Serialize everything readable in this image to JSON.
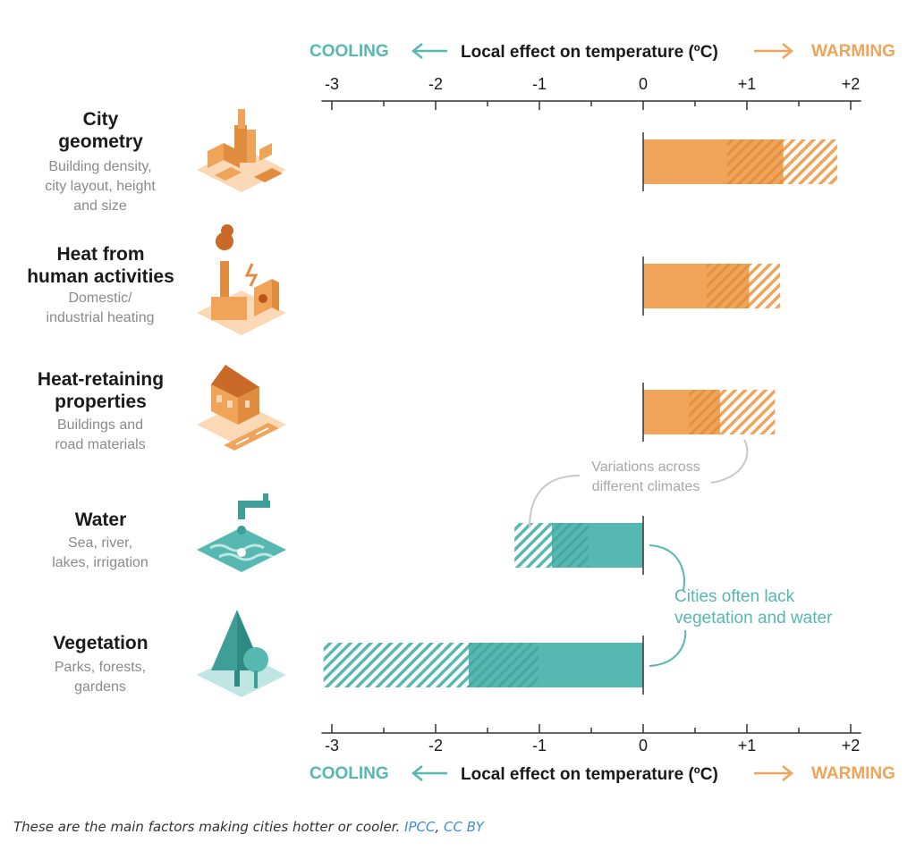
{
  "colors": {
    "cooling": "#56b8b1",
    "warming": "#f0a459",
    "cooling_dark": "#3f9f98",
    "warming_dark": "#e08d3f"
  },
  "axis": {
    "cooling_label": "COOLING",
    "title": "Local effect on temperature (ºC)",
    "warming_label": "WARMING",
    "top_ticks": [
      "-3",
      "-2",
      "-1",
      "0",
      "+1",
      "+2"
    ],
    "bottom_ticks": [
      "-3",
      "-2",
      "-1",
      "0",
      "+1",
      "+2"
    ]
  },
  "factors": [
    {
      "title": [
        "City",
        "geometry"
      ],
      "subtitle": [
        "Building density,",
        "city layout, height",
        "and size"
      ],
      "icon": "city-buildings-icon"
    },
    {
      "title": [
        "Heat from",
        "human activities"
      ],
      "subtitle": [
        "Domestic/",
        "industrial heating"
      ],
      "icon": "factory-chimney-icon"
    },
    {
      "title": [
        "Heat-retaining",
        "properties"
      ],
      "subtitle": [
        "Buildings and",
        "road materials"
      ],
      "icon": "house-road-icon"
    },
    {
      "title": [
        "Water"
      ],
      "subtitle": [
        "Sea, river,",
        "lakes, irrigation"
      ],
      "icon": "water-tap-icon"
    },
    {
      "title": [
        "Vegetation"
      ],
      "subtitle": [
        "Parks, forests,",
        "gardens"
      ],
      "icon": "tree-icon"
    }
  ],
  "annotations": {
    "variations": [
      "Variations across",
      "different climates"
    ],
    "cities_lack": [
      "Cities often lack",
      "vegetation and water"
    ]
  },
  "chart_data": {
    "type": "bar",
    "orientation": "horizontal",
    "xlim": [
      -3.1,
      2.1
    ],
    "categories": [
      "City geometry",
      "Heat from human activities",
      "Heat-retaining properties",
      "Water",
      "Vegetation"
    ],
    "series": [
      {
        "values": [
          1.35,
          1.02,
          0.74,
          -0.88,
          -1.68
        ]
      },
      {
        "values": [
          1.87,
          1.32,
          1.27,
          -1.24,
          -3.08
        ]
      }
    ]
  },
  "caption": {
    "text": "These are the main factors making cities hotter or cooler.",
    "source": "IPCC",
    "separator": ",",
    "license": "CC BY"
  }
}
